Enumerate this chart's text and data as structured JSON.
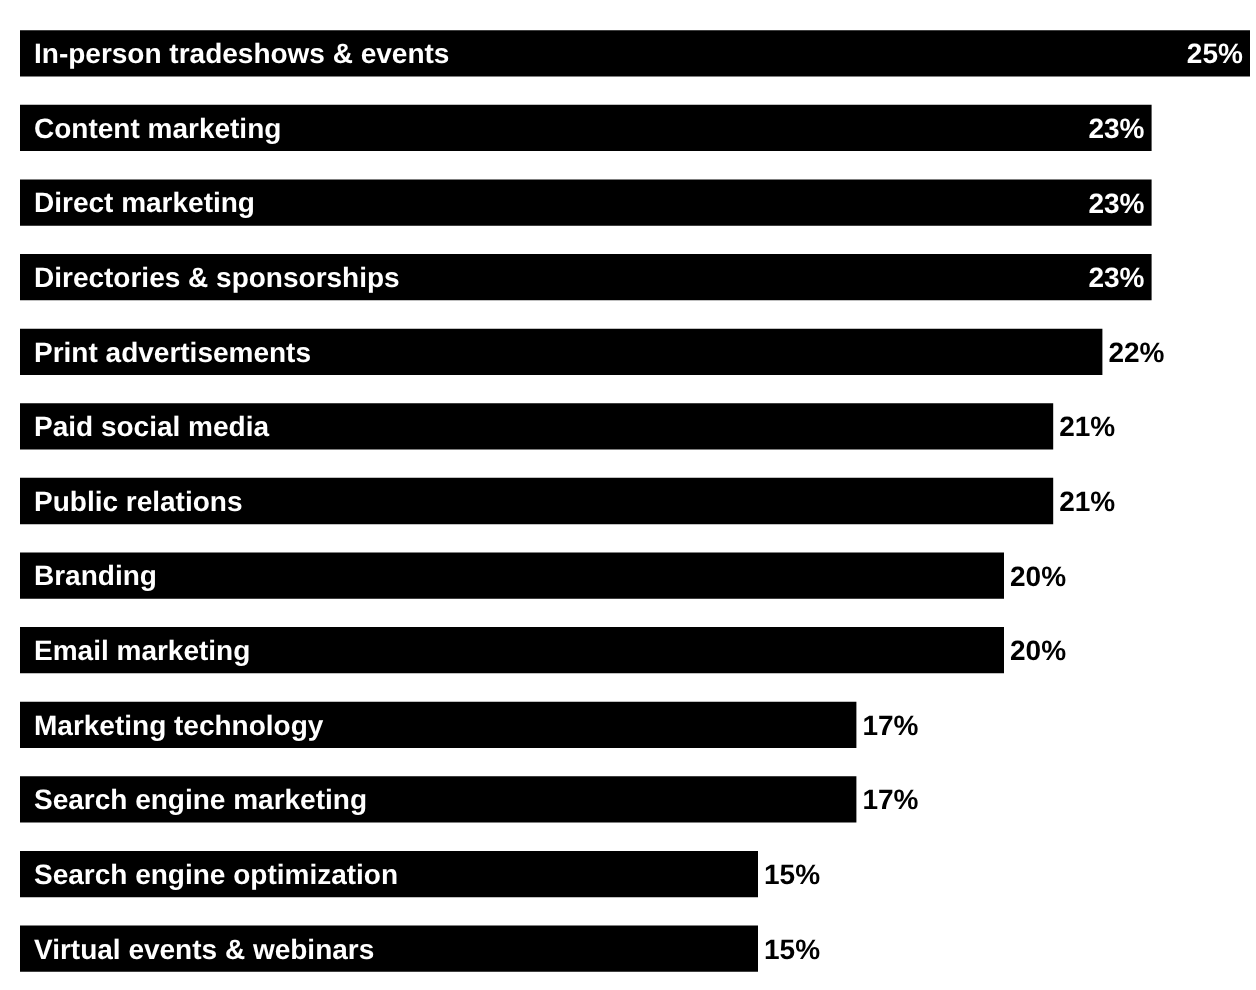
{
  "chart_data": {
    "type": "bar",
    "orientation": "horizontal",
    "categories": [
      "In-person tradeshows & events",
      "Content marketing",
      "Direct marketing",
      "Directories & sponsorships",
      "Print advertisements",
      "Paid social media",
      "Public relations",
      "Branding",
      "Email marketing",
      "Marketing technology",
      "Search engine marketing",
      "Search engine optimization",
      "Virtual events & webinars"
    ],
    "values": [
      25,
      23,
      23,
      23,
      22,
      21,
      21,
      20,
      20,
      17,
      17,
      15,
      15
    ],
    "value_labels": [
      "25%",
      "23%",
      "23%",
      "23%",
      "22%",
      "21%",
      "21%",
      "20%",
      "20%",
      "17%",
      "17%",
      "15%",
      "15%"
    ],
    "color": "#000000"
  }
}
